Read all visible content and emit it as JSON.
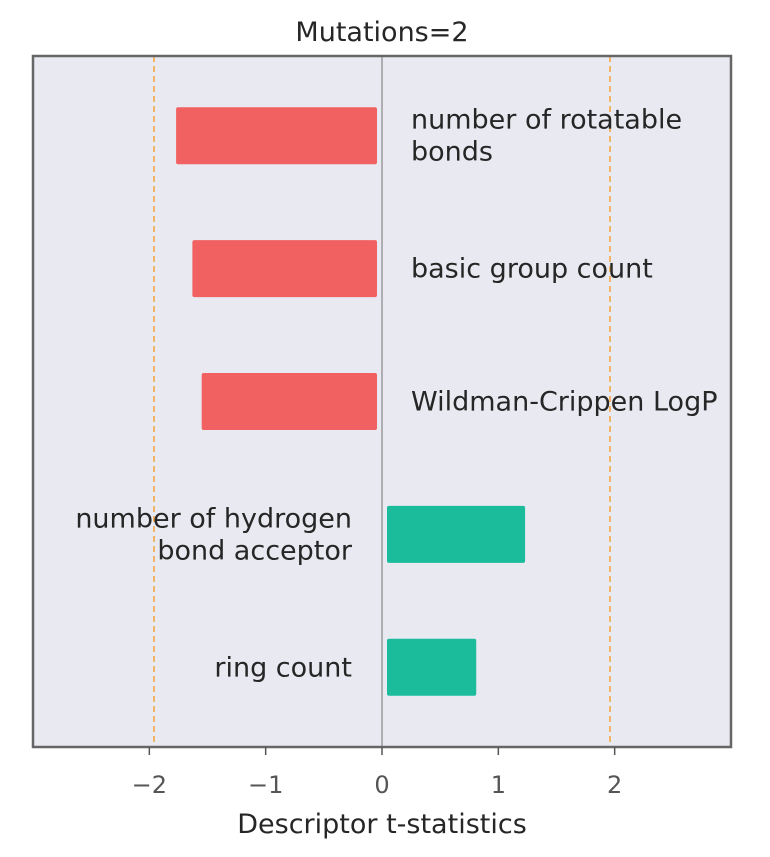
{
  "chart_data": {
    "type": "bar",
    "orientation": "horizontal",
    "title": "Mutations=2",
    "xlabel": "Descriptor t-statistics",
    "ylabel": "",
    "xlim": [
      -3.0,
      3.0
    ],
    "xticks": [
      -2,
      -1,
      0,
      1,
      2
    ],
    "xtick_labels": [
      "−2",
      "−1",
      "0",
      "1",
      "2"
    ],
    "reference_lines": [
      -1.96,
      1.96
    ],
    "grid": false,
    "categories": [
      [
        "number of rotatable",
        "bonds"
      ],
      [
        "basic group count"
      ],
      [
        "Wildman-Crippen LogP"
      ],
      [
        "number of hydrogen",
        "bond acceptor"
      ],
      [
        "ring count"
      ]
    ],
    "values": [
      -1.77,
      -1.63,
      -1.55,
      1.23,
      0.81
    ],
    "colors": {
      "negative": "#f26161",
      "positive": "#1abc9c",
      "reference_line": "#f5a742",
      "zero_line": "#888888",
      "plot_background": "#e9e9f1",
      "frame": "#666666"
    }
  }
}
